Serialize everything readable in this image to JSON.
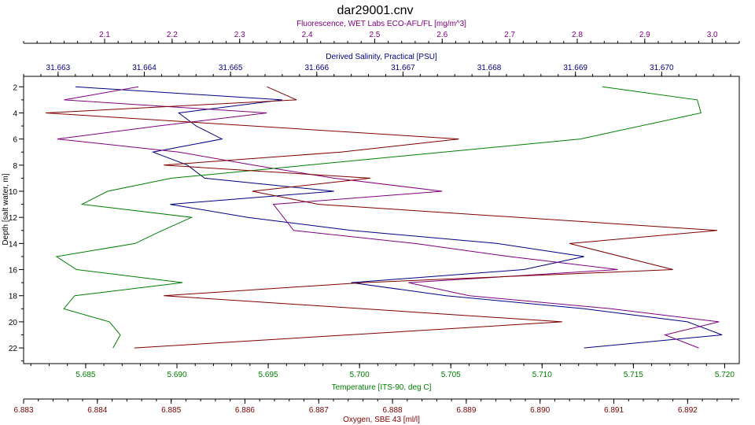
{
  "chart_data": {
    "type": "line",
    "title": "dar29001.cnv",
    "ylabel": "Depth [salt water, m]",
    "ylim": [
      1.2,
      23.2
    ],
    "yticks": [
      2,
      4,
      6,
      8,
      10,
      12,
      14,
      16,
      18,
      20,
      22
    ],
    "grid": false,
    "axes": [
      {
        "id": "fluorescence",
        "position": "top-outer",
        "label": "Fluorescence, WET Labs ECO-AFL/FL [mg/m^3]",
        "color": "#800080",
        "range": [
          1.98,
          3.04
        ],
        "ticks": [
          2.1,
          2.2,
          2.3,
          2.4,
          2.5,
          2.6,
          2.7,
          2.8,
          2.9,
          3.0
        ],
        "tick_labels": [
          "2.1",
          "2.2",
          "2.3",
          "2.4",
          "2.5",
          "2.6",
          "2.7",
          "2.8",
          "2.9",
          "3.0"
        ]
      },
      {
        "id": "salinity",
        "position": "top-inner",
        "label": "Derived Salinity, Practical [PSU]",
        "color": "#000080",
        "range": [
          31.6626,
          31.6709
        ],
        "ticks": [
          31.663,
          31.664,
          31.665,
          31.666,
          31.667,
          31.668,
          31.669,
          31.67
        ],
        "tick_labels": [
          "31.663",
          "31.664",
          "31.665",
          "31.666",
          "31.667",
          "31.668",
          "31.669",
          "31.670"
        ]
      },
      {
        "id": "temperature",
        "position": "bottom-inner",
        "label": "Temperature [ITS-90, deg C]",
        "color": "#008000",
        "range": [
          5.6816,
          5.7208
        ],
        "ticks": [
          5.685,
          5.69,
          5.695,
          5.7,
          5.705,
          5.71,
          5.715,
          5.72
        ],
        "tick_labels": [
          "5.685",
          "5.690",
          "5.695",
          "5.700",
          "5.705",
          "5.710",
          "5.715",
          "5.720"
        ]
      },
      {
        "id": "oxygen",
        "position": "bottom-outer",
        "label": "Oxygen, SBE 43 [ml/l]",
        "color": "#800000",
        "range": [
          6.883,
          6.8927
        ],
        "ticks": [
          6.883,
          6.884,
          6.885,
          6.886,
          6.887,
          6.888,
          6.889,
          6.89,
          6.891,
          6.892
        ],
        "tick_labels": [
          "6.883",
          "6.884",
          "6.885",
          "6.886",
          "6.887",
          "6.888",
          "6.889",
          "6.890",
          "6.891",
          "6.892"
        ]
      }
    ],
    "series": [
      {
        "axis": "salinity",
        "color": "#000080",
        "points": [
          [
            31.6632,
            2
          ],
          [
            31.6656,
            3
          ],
          [
            31.6644,
            4
          ],
          [
            31.6646,
            5
          ],
          [
            31.6649,
            6
          ],
          [
            31.6641,
            7
          ],
          [
            31.6645,
            8
          ],
          [
            31.6647,
            9
          ],
          [
            31.6662,
            10
          ],
          [
            31.6643,
            11
          ],
          [
            31.6652,
            12
          ],
          [
            31.6664,
            13
          ],
          [
            31.6681,
            14
          ],
          [
            31.6691,
            15
          ],
          [
            31.6684,
            16
          ],
          [
            31.6664,
            17
          ],
          [
            31.6675,
            18
          ],
          [
            31.6691,
            19
          ],
          [
            31.6703,
            20
          ],
          [
            31.6707,
            21
          ],
          [
            31.6691,
            22
          ]
        ]
      },
      {
        "axis": "fluorescence",
        "color": "#800080",
        "points": [
          [
            2.15,
            2
          ],
          [
            2.04,
            3
          ],
          [
            2.34,
            4
          ],
          [
            2.18,
            5
          ],
          [
            2.03,
            6
          ],
          [
            2.21,
            7
          ],
          [
            2.32,
            8
          ],
          [
            2.44,
            9
          ],
          [
            2.6,
            10
          ],
          [
            2.35,
            11
          ],
          [
            2.38,
            13
          ],
          [
            2.56,
            14
          ],
          [
            2.7,
            15
          ],
          [
            2.86,
            16
          ],
          [
            2.55,
            17
          ],
          [
            2.64,
            18
          ],
          [
            2.85,
            19
          ],
          [
            3.01,
            20
          ],
          [
            2.93,
            21
          ],
          [
            2.98,
            22
          ]
        ]
      },
      {
        "axis": "temperature",
        "color": "#008000",
        "points": [
          [
            5.7133,
            2
          ],
          [
            5.7185,
            3
          ],
          [
            5.7187,
            4
          ],
          [
            5.7121,
            6
          ],
          [
            5.6897,
            9
          ],
          [
            5.6862,
            10
          ],
          [
            5.6848,
            11
          ],
          [
            5.6908,
            12
          ],
          [
            5.6892,
            13
          ],
          [
            5.6877,
            14
          ],
          [
            5.6834,
            15
          ],
          [
            5.6845,
            16
          ],
          [
            5.6903,
            17
          ],
          [
            5.6844,
            18
          ],
          [
            5.6838,
            19
          ],
          [
            5.6863,
            20
          ],
          [
            5.6869,
            21
          ],
          [
            5.6865,
            22
          ]
        ]
      },
      {
        "axis": "oxygen",
        "color": "#800000",
        "points": [
          [
            6.8863,
            2
          ],
          [
            6.8867,
            3
          ],
          [
            6.8833,
            4
          ],
          [
            6.8889,
            6
          ],
          [
            6.8873,
            7
          ],
          [
            6.8849,
            8
          ],
          [
            6.8877,
            9
          ],
          [
            6.8861,
            10
          ],
          [
            6.887,
            11
          ],
          [
            6.8924,
            13
          ],
          [
            6.8904,
            14
          ],
          [
            6.8918,
            16
          ],
          [
            6.8876,
            17
          ],
          [
            6.8849,
            18
          ],
          [
            6.8903,
            20
          ],
          [
            6.8845,
            22
          ]
        ]
      }
    ]
  }
}
